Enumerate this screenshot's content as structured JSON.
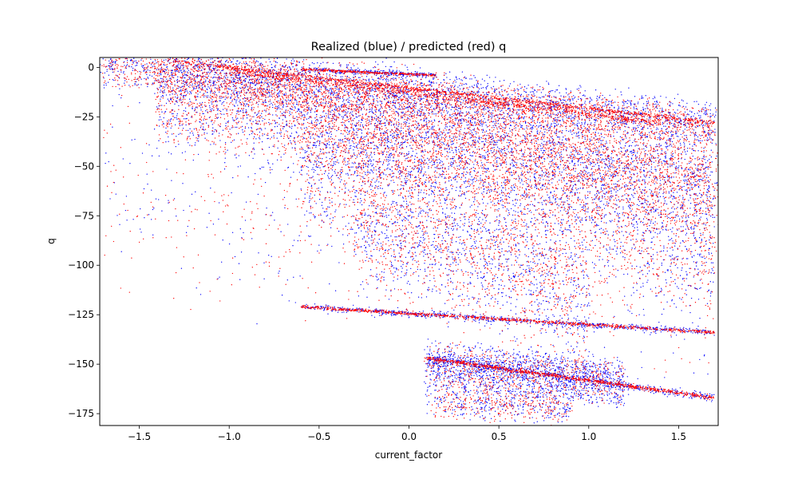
{
  "chart_data": {
    "type": "scatter",
    "title": "Realized (blue) / predicted (red) q",
    "xlabel": "current_factor",
    "ylabel": "q",
    "xlim": [
      -1.72,
      1.72
    ],
    "ylim": [
      -181,
      5
    ],
    "xticks": [
      -1.5,
      -1.0,
      -0.5,
      0.0,
      0.5,
      1.0,
      1.5
    ],
    "xtick_labels": [
      "−1.5",
      "−1.0",
      "−0.5",
      "0.0",
      "0.5",
      "1.0",
      "1.5"
    ],
    "yticks": [
      0,
      -25,
      -50,
      -75,
      -100,
      -125,
      -150,
      -175
    ],
    "ytick_labels": [
      "0",
      "−25",
      "−50",
      "−75",
      "−100",
      "−125",
      "−150",
      "−175"
    ],
    "grid": false,
    "legend": "none",
    "series": [
      {
        "color": "#0000ff",
        "marker_size": 1,
        "clusters": [
          {
            "kind": "band",
            "x0": -1.7,
            "x1": 1.7,
            "y_at_x0": 2,
            "y_at_x1": -28,
            "spread": 14,
            "count": 2200
          },
          {
            "kind": "band",
            "x0": -1.4,
            "x1": 1.7,
            "y_at_x0": -10,
            "y_at_x1": -55,
            "spread": 35,
            "count": 3200
          },
          {
            "kind": "band",
            "x0": -0.6,
            "x1": 1.7,
            "y_at_x0": -45,
            "y_at_x1": -85,
            "spread": 45,
            "count": 1800
          },
          {
            "kind": "band",
            "x0": -0.3,
            "x1": 1.0,
            "y_at_x0": -80,
            "y_at_x1": -120,
            "spread": 35,
            "count": 700
          },
          {
            "kind": "line",
            "x0": -0.6,
            "x1": 1.7,
            "y_at_x0": -121,
            "y_at_x1": -134,
            "spread": 1.5,
            "count": 700
          },
          {
            "kind": "line",
            "x0": 0.1,
            "x1": 1.7,
            "y_at_x0": -147,
            "y_at_x1": -167,
            "spread": 2,
            "count": 500
          },
          {
            "kind": "band",
            "x0": 0.1,
            "x1": 1.2,
            "y_at_x0": -150,
            "y_at_x1": -160,
            "spread": 14,
            "count": 1500
          },
          {
            "kind": "band",
            "x0": 0.1,
            "x1": 0.9,
            "y_at_x0": -168,
            "y_at_x1": -172,
            "spread": 10,
            "count": 300
          },
          {
            "kind": "line",
            "x0": -0.6,
            "x1": 0.15,
            "y_at_x0": -1,
            "y_at_x1": -4,
            "spread": 1.2,
            "count": 250
          },
          {
            "kind": "band",
            "x0": -1.7,
            "x1": 1.7,
            "y_at_x0": -60,
            "y_at_x1": -110,
            "spread": 60,
            "count": 500
          }
        ]
      },
      {
        "color": "#ff0000",
        "marker_size": 1,
        "clusters": [
          {
            "kind": "band",
            "x0": -1.7,
            "x1": 1.7,
            "y_at_x0": 0,
            "y_at_x1": -30,
            "spread": 12,
            "count": 1800
          },
          {
            "kind": "band",
            "x0": -1.4,
            "x1": 1.7,
            "y_at_x0": -8,
            "y_at_x1": -55,
            "spread": 32,
            "count": 4200
          },
          {
            "kind": "band",
            "x0": -0.6,
            "x1": 1.7,
            "y_at_x0": -45,
            "y_at_x1": -85,
            "spread": 45,
            "count": 2000
          },
          {
            "kind": "band",
            "x0": -0.3,
            "x1": 1.0,
            "y_at_x0": -80,
            "y_at_x1": -120,
            "spread": 35,
            "count": 700
          },
          {
            "kind": "line",
            "x0": -0.6,
            "x1": 1.7,
            "y_at_x0": -121,
            "y_at_x1": -134,
            "spread": 0.8,
            "count": 900
          },
          {
            "kind": "line",
            "x0": 0.1,
            "x1": 1.7,
            "y_at_x0": -147,
            "y_at_x1": -167,
            "spread": 1,
            "count": 800
          },
          {
            "kind": "band",
            "x0": 0.1,
            "x1": 1.2,
            "y_at_x0": -150,
            "y_at_x1": -160,
            "spread": 14,
            "count": 600
          },
          {
            "kind": "band",
            "x0": 0.1,
            "x1": 0.9,
            "y_at_x0": -168,
            "y_at_x1": -172,
            "spread": 10,
            "count": 300
          },
          {
            "kind": "line",
            "x0": -0.6,
            "x1": 0.15,
            "y_at_x0": -1,
            "y_at_x1": -4,
            "spread": 0.6,
            "count": 350
          },
          {
            "kind": "line",
            "x0": -1.3,
            "x1": 1.7,
            "y_at_x0": 3,
            "y_at_x1": -28,
            "spread": 1,
            "count": 900
          },
          {
            "kind": "line",
            "x0": -1.0,
            "x1": 1.4,
            "y_at_x0": -2,
            "y_at_x1": -28,
            "spread": 1.5,
            "count": 700
          },
          {
            "kind": "band",
            "x0": -1.7,
            "x1": 1.7,
            "y_at_x0": -60,
            "y_at_x1": -110,
            "spread": 60,
            "count": 500
          }
        ]
      }
    ]
  }
}
